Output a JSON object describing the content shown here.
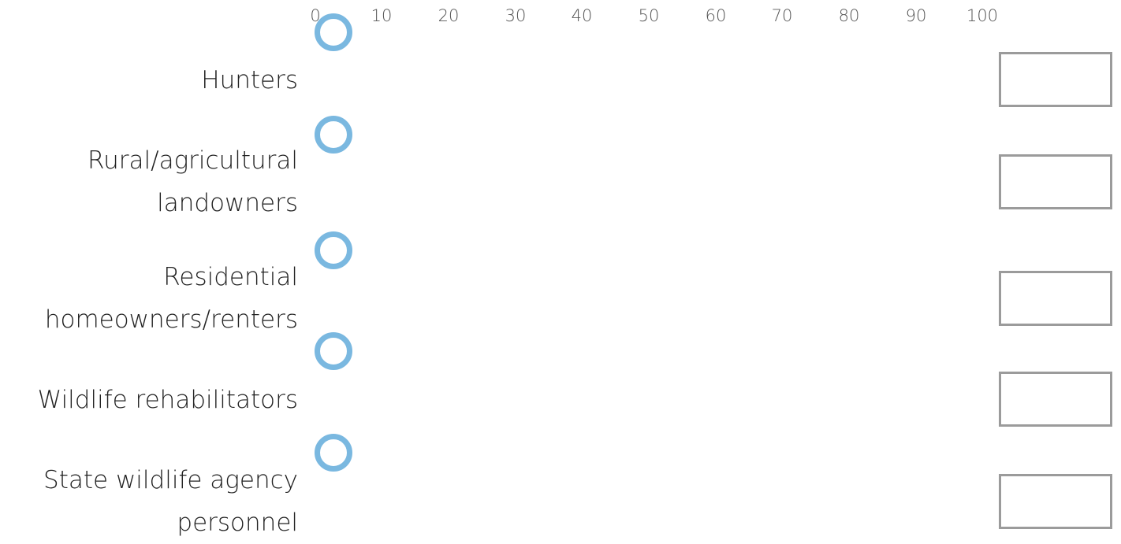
{
  "scale": {
    "ticks": [
      "0",
      "10",
      "20",
      "30",
      "40",
      "50",
      "60",
      "70",
      "80",
      "90",
      "100"
    ]
  },
  "sliders": [
    {
      "label": "Hunters",
      "value": 0,
      "input_value": ""
    },
    {
      "label": "Rural/agricultural\nlandowners",
      "value": 0,
      "input_value": ""
    },
    {
      "label": "Residential\nhomeowners/renters",
      "value": 0,
      "input_value": ""
    },
    {
      "label": "Wildlife rehabilitators",
      "value": 0,
      "input_value": ""
    },
    {
      "label": "State wildlife agency\npersonnel",
      "value": 0,
      "input_value": ""
    }
  ],
  "colors": {
    "handle": "#7ab8e0",
    "box_border": "#9b9b9b"
  }
}
